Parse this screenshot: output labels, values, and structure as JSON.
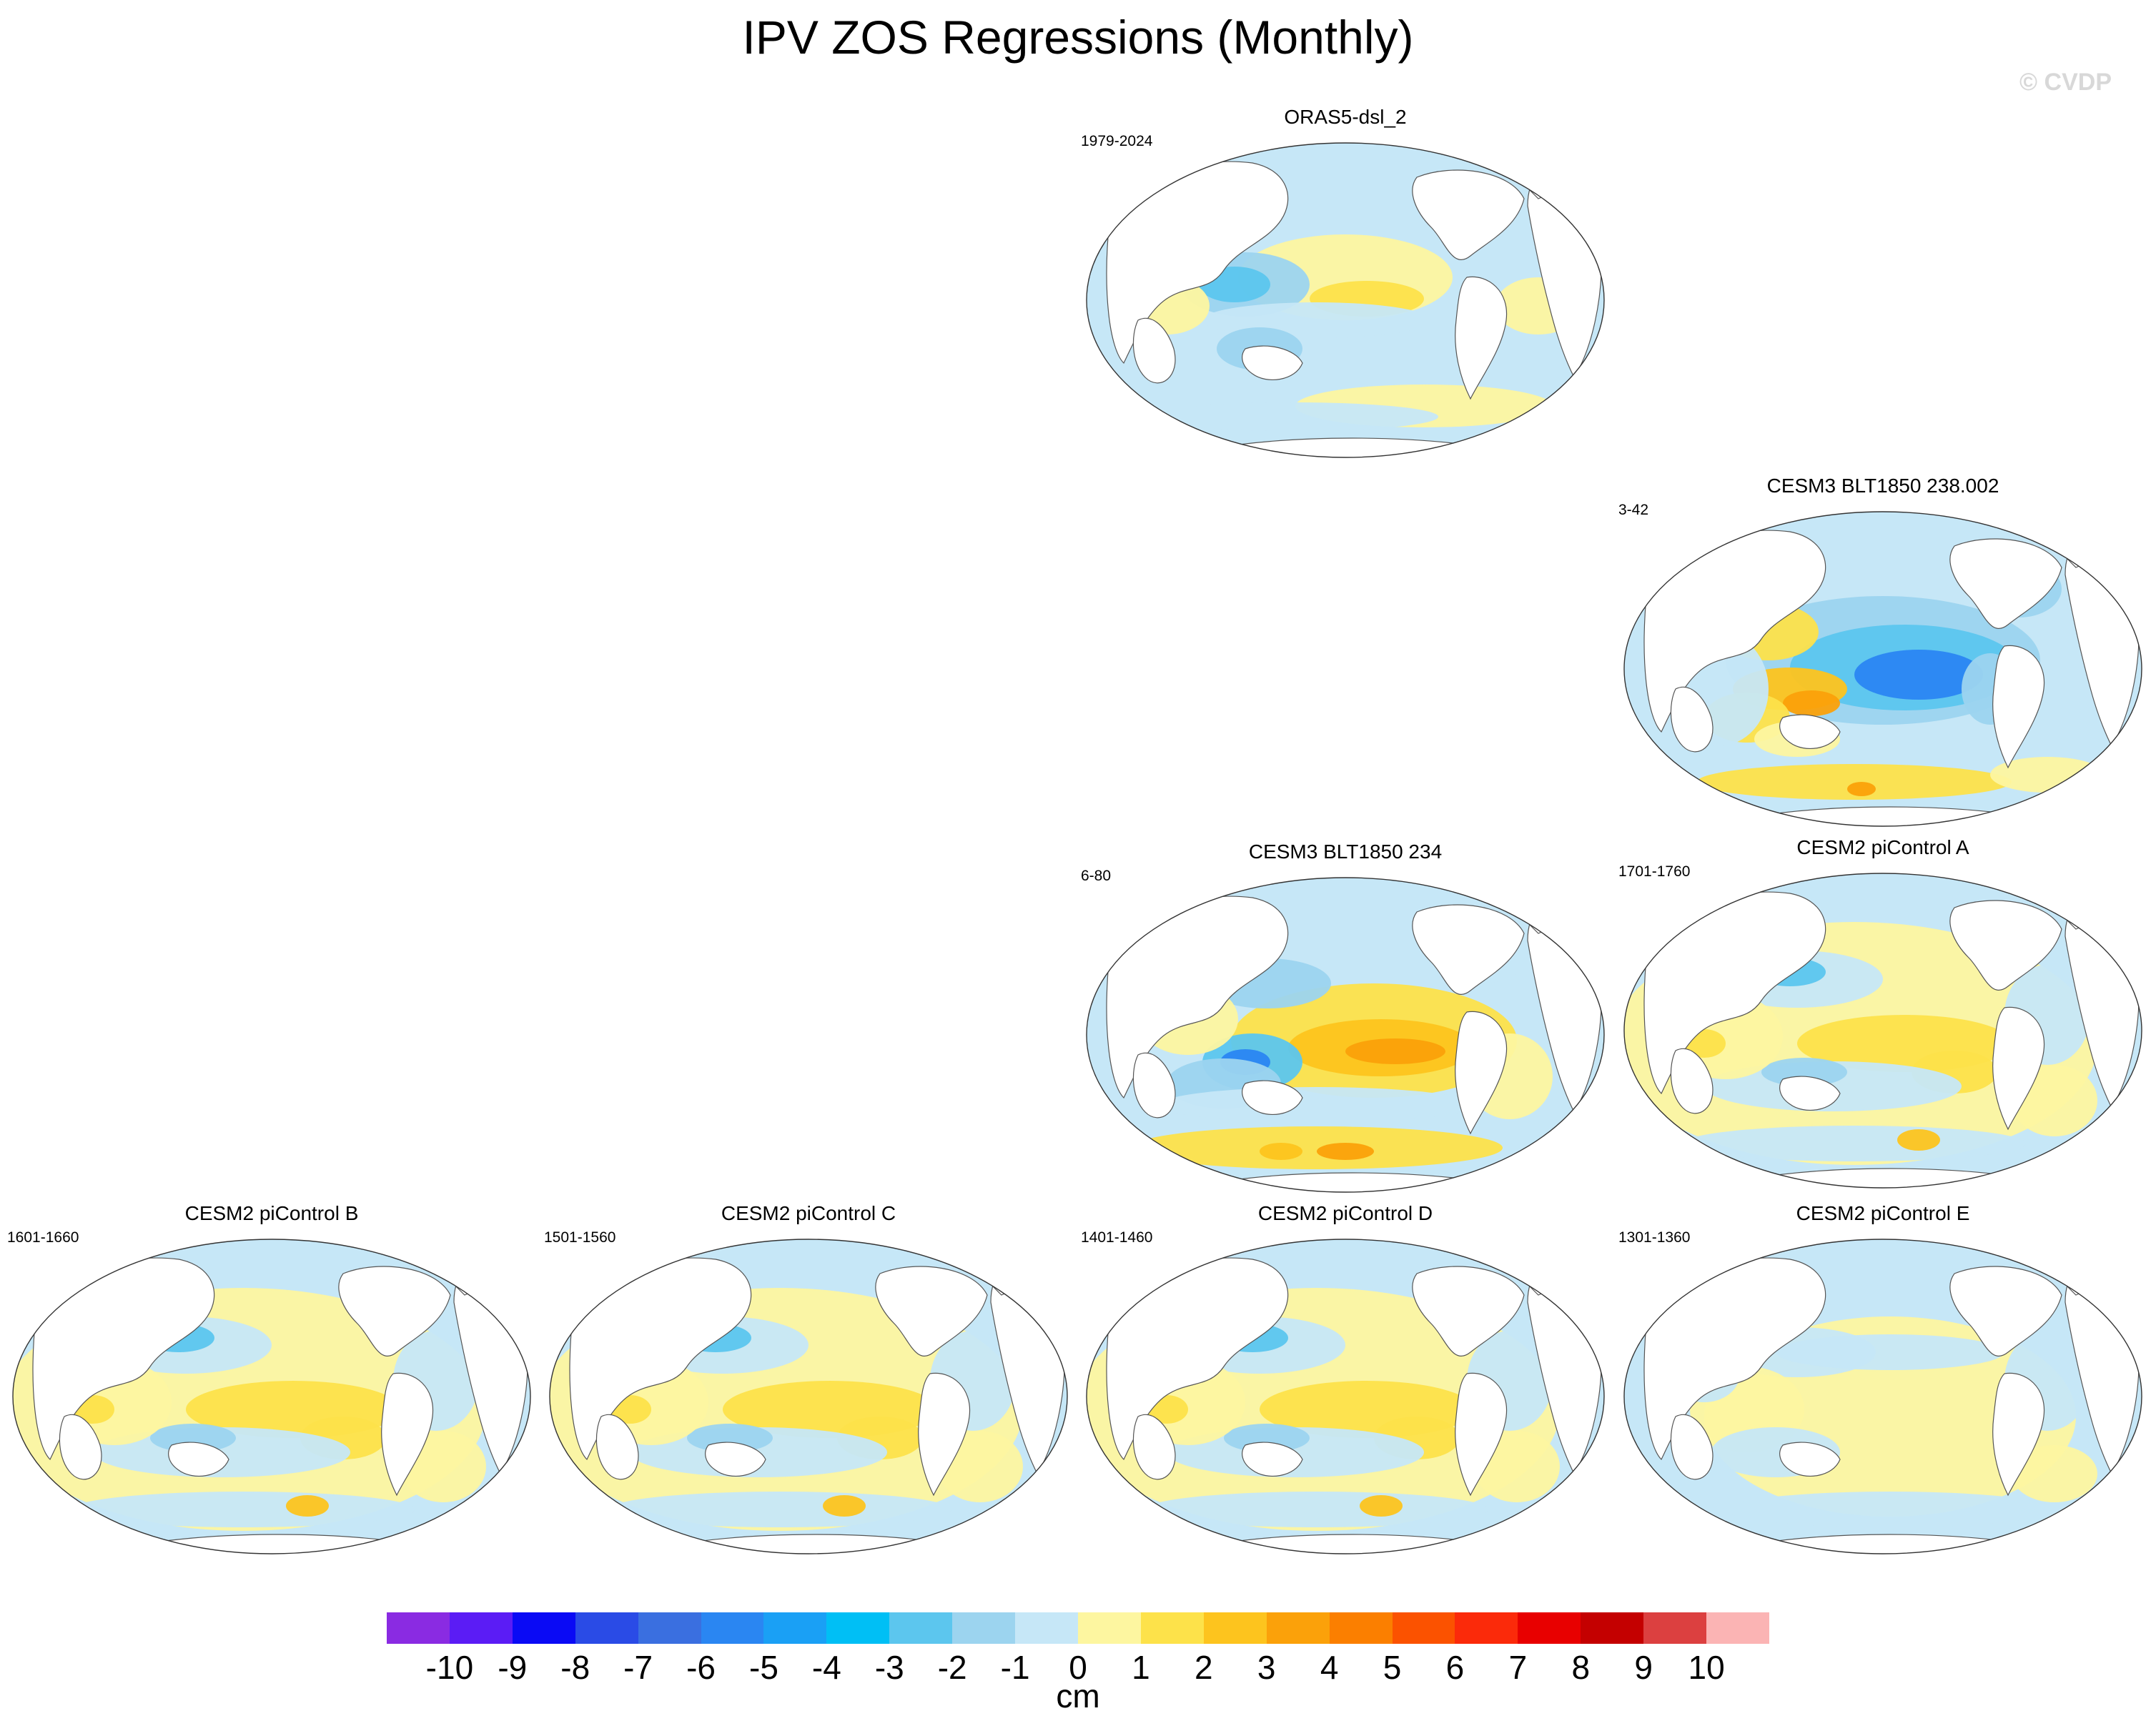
{
  "title": "IPV ZOS Regressions (Monthly)",
  "copyright": "© CVDP",
  "panels": [
    {
      "id": "oras5",
      "title": "ORAS5-dsl_2",
      "period": "1979-2024",
      "pattern": "obs"
    },
    {
      "id": "cesm3-238",
      "title": "CESM3 BLT1850 238.002",
      "period": "3-42",
      "pattern": "neg-strong"
    },
    {
      "id": "cesm3-234",
      "title": "CESM3 BLT1850 234",
      "period": "6-80",
      "pattern": "pos-strong"
    },
    {
      "id": "cesm2-a",
      "title": "CESM2 piControl A",
      "period": "1701-1760",
      "pattern": "pos-mild"
    },
    {
      "id": "cesm2-b",
      "title": "CESM2 piControl B",
      "period": "1601-1660",
      "pattern": "pos-mild"
    },
    {
      "id": "cesm2-c",
      "title": "CESM2 piControl C",
      "period": "1501-1560",
      "pattern": "pos-mild"
    },
    {
      "id": "cesm2-d",
      "title": "CESM2 piControl D",
      "period": "1401-1460",
      "pattern": "pos-mild"
    },
    {
      "id": "cesm2-e",
      "title": "CESM2 piControl E",
      "period": "1301-1360",
      "pattern": "pos-weak"
    }
  ],
  "colorbar": {
    "labels": [
      "-10",
      "-9",
      "-8",
      "-7",
      "-6",
      "-5",
      "-4",
      "-3",
      "-2",
      "-1",
      "0",
      "1",
      "2",
      "3",
      "4",
      "5",
      "6",
      "7",
      "8",
      "9",
      "10"
    ],
    "colors": [
      "#8a2be2",
      "#5b1cf5",
      "#0a0af5",
      "#2a4be6",
      "#3a6fe0",
      "#2a86f2",
      "#1aa0f5",
      "#00bff5",
      "#5cc6ee",
      "#9cd4ef",
      "#c6e7f7",
      "#fdf6a0",
      "#fde24a",
      "#fdc41e",
      "#fba10a",
      "#fb7f00",
      "#fb5200",
      "#fb2a0a",
      "#e80000",
      "#c40000",
      "#dc4040",
      "#fbb4b4"
    ],
    "units": "cm"
  },
  "palette": {
    "land": "#ffffff",
    "neg1": "#c6e7f7",
    "neg2": "#9cd4ef",
    "neg3": "#5cc6ee",
    "neg4": "#2a86f2",
    "pos1": "#fdf6a0",
    "pos2": "#fde24a",
    "pos3": "#fdc41e",
    "pos4": "#fba10a",
    "pos5": "#fb5200"
  }
}
